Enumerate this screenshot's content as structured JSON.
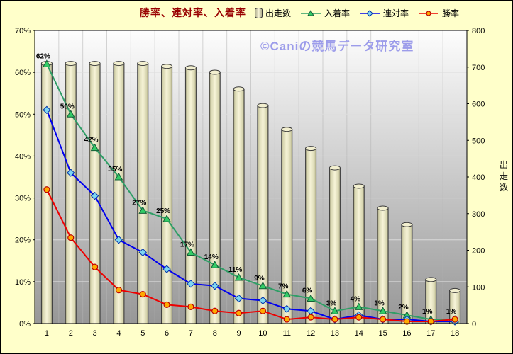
{
  "chart_data": {
    "type": "combo",
    "title": "勝率、連対率、入着率",
    "watermark": "©Caniの競馬データ研究室",
    "categories": [
      1,
      2,
      3,
      4,
      5,
      6,
      7,
      8,
      9,
      10,
      11,
      12,
      13,
      14,
      15,
      16,
      17,
      18
    ],
    "left_axis": {
      "min": 0,
      "max": 70,
      "step": 10,
      "suffix": "%"
    },
    "right_axis": {
      "min": 0,
      "max": 800,
      "step": 100,
      "label": "出走数"
    },
    "plot_colors": {
      "bg_top": "#fdfdfd",
      "bg_bottom": "#979797",
      "grid": "#dedede",
      "vgrid": "#b4b4b4"
    },
    "series": [
      {
        "name": "出走数",
        "type": "bar",
        "axis": "right",
        "fill_center": "#f7f4d8",
        "fill_edge": "#9a9878",
        "edge": "#3a3a3a",
        "values": [
          710,
          710,
          710,
          710,
          710,
          702,
          698,
          686,
          640,
          595,
          530,
          478,
          425,
          375,
          315,
          270,
          120,
          90
        ]
      },
      {
        "name": "入着率",
        "type": "line",
        "axis": "left",
        "marker": "triangle",
        "color": "#2f9e66",
        "marker_fill": "#33cc66",
        "marker_stroke": "#145c36",
        "show_labels": true,
        "values": [
          62,
          50,
          42,
          35,
          27,
          25,
          17,
          14,
          11,
          9,
          7,
          6,
          3,
          4,
          3,
          2,
          1,
          1
        ]
      },
      {
        "name": "連対率",
        "type": "line",
        "axis": "left",
        "marker": "diamond",
        "color": "#0000ee",
        "marker_fill": "#7fd7f2",
        "marker_stroke": "#0033aa",
        "values": [
          51,
          36,
          30.5,
          20,
          17,
          13,
          9.5,
          9,
          6,
          5.5,
          3.5,
          3,
          1,
          2,
          1,
          1,
          0.5,
          0.5
        ]
      },
      {
        "name": "勝率",
        "type": "line",
        "axis": "left",
        "marker": "circle",
        "color": "#ee0000",
        "marker_fill": "#ffaa00",
        "marker_stroke": "#bb0000",
        "values": [
          32,
          20.5,
          13.5,
          8,
          7,
          4.5,
          4,
          3,
          2.5,
          3,
          1,
          1.5,
          1,
          1.5,
          1,
          0.5,
          0.5,
          1
        ]
      }
    ]
  }
}
